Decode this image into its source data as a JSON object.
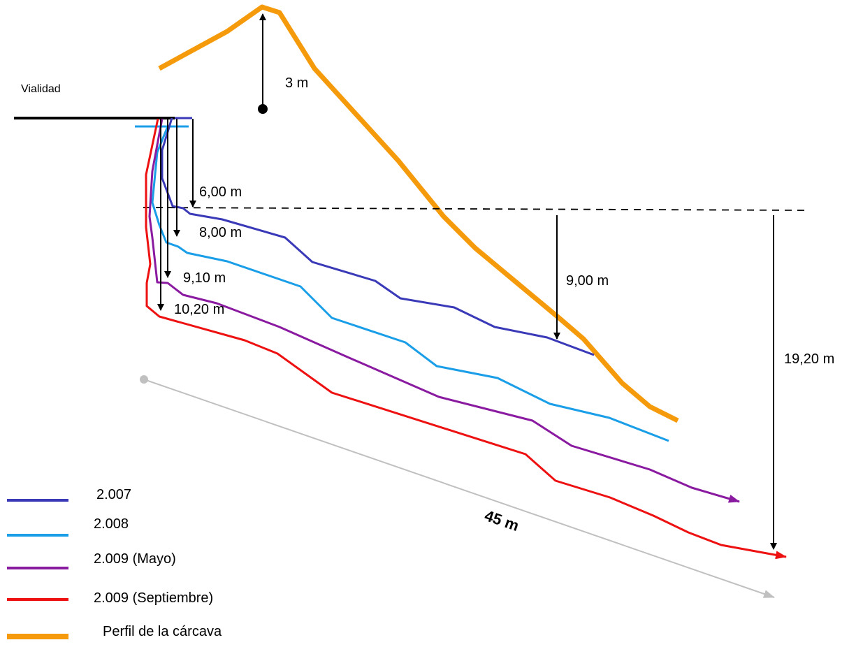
{
  "labels": {
    "road": "Vialidad",
    "peak_height": "3 m",
    "depth_2007": "6,00 m",
    "depth_2008": "8,00 m",
    "depth_2009_may": "9,10 m",
    "depth_2009_sep": "10,20 m",
    "depth_right_mid": "9,00 m",
    "depth_right_total": "19,20 m",
    "length": "45 m"
  },
  "legend": [
    {
      "label": "2.007",
      "color": "#3a3ab8"
    },
    {
      "label": "2.008",
      "color": "#1a9ee8"
    },
    {
      "label": "2.009 (Mayo)",
      "color": "#8a1aa0"
    },
    {
      "label": "2.009 (Septiembre)",
      "color": "#ee1111"
    },
    {
      "label": "Perfil de la cárcava",
      "color": "#f59a0a"
    }
  ],
  "colors": {
    "line_2007": "#3a3ab8",
    "line_2008": "#1a9ee8",
    "line_2009_may": "#8a1aa0",
    "line_2009_sep": "#ee1111",
    "gully_profile": "#f59a0a",
    "length_arrow": "#c0c0c0",
    "road": "#000000"
  }
}
